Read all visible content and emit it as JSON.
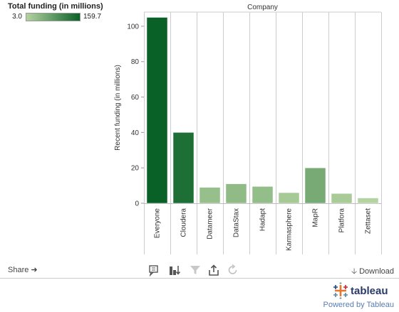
{
  "legend": {
    "title": "Total funding (in millions)",
    "min": "3.0",
    "max": "159.7"
  },
  "colors": {
    "ramp_low": "#b4d3a0",
    "ramp_high": "#0a6128",
    "bar_stroke": "#ffffff",
    "grid": "#cccccc"
  },
  "toolbar": {
    "share_label": "Share",
    "download_label": "Download",
    "icons": [
      "comment-icon",
      "sort-icon",
      "filter-icon",
      "export-icon",
      "revert-icon"
    ]
  },
  "footer": {
    "powered_label": "Powered by Tableau",
    "logo_text": "tableau"
  },
  "chart_data": {
    "type": "bar",
    "title": "Company",
    "xlabel": "",
    "ylabel": "Recent funding (in millions)",
    "ylim": [
      0,
      108
    ],
    "yticks": [
      0,
      20,
      40,
      60,
      80,
      100
    ],
    "grid": false,
    "legend": "top-left color ramp",
    "categories": [
      "Everyone",
      "Cloudera",
      "Datameer",
      "DataStax",
      "Hadapt",
      "Karmasphere",
      "MapR",
      "Platfora",
      "Zettaset"
    ],
    "values": [
      105,
      40,
      9,
      11,
      9.5,
      6,
      20,
      5.5,
      3
    ],
    "total_funding": [
      159.7,
      141,
      30,
      36,
      33,
      16,
      59,
      14,
      3
    ]
  }
}
